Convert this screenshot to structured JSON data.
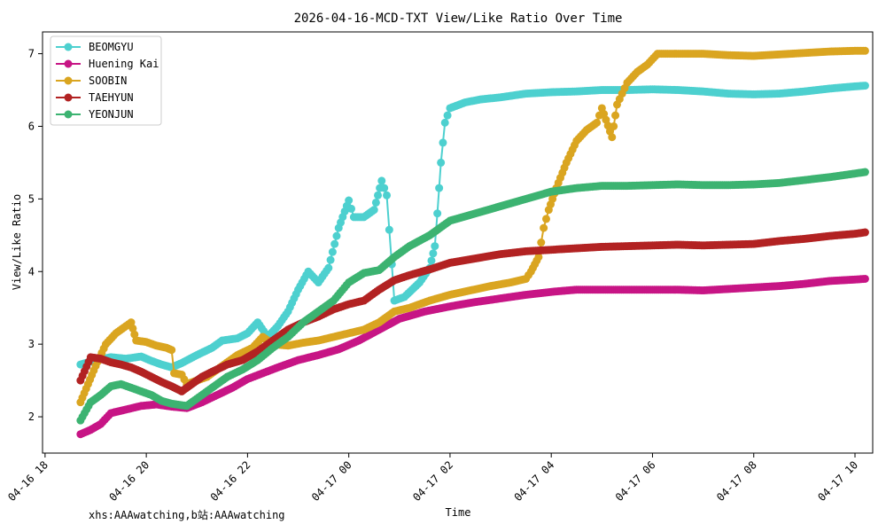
{
  "chart_data": {
    "type": "line",
    "title": "2026-04-16-MCD-TXT View/Like Ratio Over Time",
    "xlabel": "Time",
    "ylabel": "View/Like Ratio",
    "footer": "xhs:AAAwatching,b站:AAAwatching",
    "grid": false,
    "legend_position": "top-left",
    "x_unit": "hours since 2026-04-16 18:00",
    "xlim": [
      -0.05,
      16.35
    ],
    "ylim": [
      1.5,
      7.3
    ],
    "x_ticks": [
      {
        "value": 0,
        "label": "04-16 18"
      },
      {
        "value": 2,
        "label": "04-16 20"
      },
      {
        "value": 4,
        "label": "04-16 22"
      },
      {
        "value": 6,
        "label": "04-17 00"
      },
      {
        "value": 8,
        "label": "04-17 02"
      },
      {
        "value": 10,
        "label": "04-17 04"
      },
      {
        "value": 12,
        "label": "04-17 06"
      },
      {
        "value": 14,
        "label": "04-17 08"
      },
      {
        "value": 16,
        "label": "04-17 10"
      }
    ],
    "y_ticks": [
      {
        "value": 2,
        "label": "2"
      },
      {
        "value": 3,
        "label": "3"
      },
      {
        "value": 4,
        "label": "4"
      },
      {
        "value": 5,
        "label": "5"
      },
      {
        "value": 6,
        "label": "6"
      },
      {
        "value": 7,
        "label": "7"
      }
    ],
    "series": [
      {
        "name": "BEOMGYU",
        "color": "#4dd0cf",
        "points": [
          [
            0.7,
            2.72
          ],
          [
            1.0,
            2.78
          ],
          [
            1.3,
            2.82
          ],
          [
            1.6,
            2.8
          ],
          [
            1.9,
            2.83
          ],
          [
            2.1,
            2.77
          ],
          [
            2.3,
            2.72
          ],
          [
            2.5,
            2.68
          ],
          [
            2.7,
            2.74
          ],
          [
            3.0,
            2.85
          ],
          [
            3.3,
            2.95
          ],
          [
            3.5,
            3.05
          ],
          [
            3.8,
            3.08
          ],
          [
            4.0,
            3.15
          ],
          [
            4.2,
            3.3
          ],
          [
            4.4,
            3.1
          ],
          [
            4.6,
            3.25
          ],
          [
            4.8,
            3.45
          ],
          [
            5.0,
            3.75
          ],
          [
            5.2,
            4.0
          ],
          [
            5.4,
            3.85
          ],
          [
            5.6,
            4.05
          ],
          [
            5.8,
            4.6
          ],
          [
            6.0,
            4.98
          ],
          [
            6.1,
            4.75
          ],
          [
            6.3,
            4.75
          ],
          [
            6.5,
            4.85
          ],
          [
            6.65,
            5.25
          ],
          [
            6.75,
            5.05
          ],
          [
            6.85,
            4.1
          ],
          [
            6.9,
            3.6
          ],
          [
            7.1,
            3.65
          ],
          [
            7.4,
            3.85
          ],
          [
            7.6,
            4.05
          ],
          [
            7.7,
            4.35
          ],
          [
            7.75,
            4.8
          ],
          [
            7.82,
            5.5
          ],
          [
            7.9,
            6.05
          ],
          [
            8.0,
            6.25
          ],
          [
            8.3,
            6.33
          ],
          [
            8.6,
            6.37
          ],
          [
            9.0,
            6.4
          ],
          [
            9.5,
            6.45
          ],
          [
            10.0,
            6.47
          ],
          [
            10.5,
            6.48
          ],
          [
            11.0,
            6.5
          ],
          [
            11.5,
            6.5
          ],
          [
            12.0,
            6.51
          ],
          [
            12.5,
            6.5
          ],
          [
            13.0,
            6.48
          ],
          [
            13.5,
            6.45
          ],
          [
            14.0,
            6.44
          ],
          [
            14.5,
            6.45
          ],
          [
            15.0,
            6.48
          ],
          [
            15.5,
            6.52
          ],
          [
            16.0,
            6.55
          ],
          [
            16.2,
            6.56
          ]
        ]
      },
      {
        "name": "Huening Kai",
        "color": "#c71585",
        "points": [
          [
            0.7,
            1.76
          ],
          [
            0.9,
            1.82
          ],
          [
            1.1,
            1.9
          ],
          [
            1.3,
            2.05
          ],
          [
            1.6,
            2.1
          ],
          [
            1.9,
            2.15
          ],
          [
            2.2,
            2.17
          ],
          [
            2.5,
            2.14
          ],
          [
            2.8,
            2.12
          ],
          [
            3.1,
            2.2
          ],
          [
            3.4,
            2.3
          ],
          [
            3.7,
            2.4
          ],
          [
            4.0,
            2.52
          ],
          [
            4.3,
            2.6
          ],
          [
            4.6,
            2.68
          ],
          [
            5.0,
            2.78
          ],
          [
            5.4,
            2.85
          ],
          [
            5.8,
            2.93
          ],
          [
            6.2,
            3.05
          ],
          [
            6.6,
            3.2
          ],
          [
            7.0,
            3.35
          ],
          [
            7.5,
            3.45
          ],
          [
            8.0,
            3.52
          ],
          [
            8.5,
            3.58
          ],
          [
            9.0,
            3.63
          ],
          [
            9.5,
            3.68
          ],
          [
            10.0,
            3.72
          ],
          [
            10.5,
            3.75
          ],
          [
            11.0,
            3.75
          ],
          [
            11.5,
            3.75
          ],
          [
            12.0,
            3.75
          ],
          [
            12.5,
            3.75
          ],
          [
            13.0,
            3.74
          ],
          [
            13.5,
            3.76
          ],
          [
            14.0,
            3.78
          ],
          [
            14.5,
            3.8
          ],
          [
            15.0,
            3.83
          ],
          [
            15.5,
            3.87
          ],
          [
            16.0,
            3.89
          ],
          [
            16.2,
            3.9
          ]
        ]
      },
      {
        "name": "SOOBIN",
        "color": "#daa520",
        "points": [
          [
            0.7,
            2.2
          ],
          [
            0.85,
            2.45
          ],
          [
            1.0,
            2.7
          ],
          [
            1.2,
            3.0
          ],
          [
            1.4,
            3.15
          ],
          [
            1.6,
            3.25
          ],
          [
            1.7,
            3.3
          ],
          [
            1.8,
            3.05
          ],
          [
            2.0,
            3.03
          ],
          [
            2.2,
            2.98
          ],
          [
            2.4,
            2.95
          ],
          [
            2.5,
            2.92
          ],
          [
            2.55,
            2.6
          ],
          [
            2.7,
            2.58
          ],
          [
            2.8,
            2.45
          ],
          [
            3.0,
            2.5
          ],
          [
            3.2,
            2.55
          ],
          [
            3.5,
            2.7
          ],
          [
            3.8,
            2.85
          ],
          [
            4.1,
            2.95
          ],
          [
            4.3,
            3.1
          ],
          [
            4.5,
            3.0
          ],
          [
            4.8,
            2.98
          ],
          [
            5.1,
            3.02
          ],
          [
            5.4,
            3.05
          ],
          [
            5.7,
            3.1
          ],
          [
            6.0,
            3.15
          ],
          [
            6.3,
            3.2
          ],
          [
            6.6,
            3.3
          ],
          [
            6.9,
            3.45
          ],
          [
            7.2,
            3.5
          ],
          [
            7.6,
            3.6
          ],
          [
            8.0,
            3.68
          ],
          [
            8.4,
            3.74
          ],
          [
            8.8,
            3.8
          ],
          [
            9.2,
            3.85
          ],
          [
            9.5,
            3.9
          ],
          [
            9.6,
            4.0
          ],
          [
            9.75,
            4.2
          ],
          [
            9.85,
            4.6
          ],
          [
            9.95,
            4.85
          ],
          [
            10.1,
            5.15
          ],
          [
            10.3,
            5.5
          ],
          [
            10.5,
            5.8
          ],
          [
            10.7,
            5.95
          ],
          [
            10.9,
            6.05
          ],
          [
            11.0,
            6.25
          ],
          [
            11.2,
            5.85
          ],
          [
            11.3,
            6.3
          ],
          [
            11.4,
            6.45
          ],
          [
            11.5,
            6.6
          ],
          [
            11.7,
            6.75
          ],
          [
            11.9,
            6.85
          ],
          [
            12.1,
            7.0
          ],
          [
            12.3,
            7.0
          ],
          [
            12.6,
            7.0
          ],
          [
            13.0,
            7.0
          ],
          [
            13.5,
            6.98
          ],
          [
            14.0,
            6.97
          ],
          [
            14.5,
            6.99
          ],
          [
            15.0,
            7.01
          ],
          [
            15.5,
            7.03
          ],
          [
            16.0,
            7.04
          ],
          [
            16.2,
            7.04
          ]
        ]
      },
      {
        "name": "TAEHYUN",
        "color": "#b22222",
        "points": [
          [
            0.7,
            2.5
          ],
          [
            0.9,
            2.82
          ],
          [
            1.1,
            2.8
          ],
          [
            1.3,
            2.75
          ],
          [
            1.5,
            2.72
          ],
          [
            1.7,
            2.68
          ],
          [
            1.9,
            2.62
          ],
          [
            2.1,
            2.55
          ],
          [
            2.3,
            2.48
          ],
          [
            2.5,
            2.42
          ],
          [
            2.7,
            2.35
          ],
          [
            2.9,
            2.45
          ],
          [
            3.1,
            2.55
          ],
          [
            3.3,
            2.62
          ],
          [
            3.6,
            2.72
          ],
          [
            3.9,
            2.78
          ],
          [
            4.2,
            2.9
          ],
          [
            4.5,
            3.05
          ],
          [
            4.8,
            3.2
          ],
          [
            5.1,
            3.3
          ],
          [
            5.4,
            3.38
          ],
          [
            5.7,
            3.48
          ],
          [
            6.0,
            3.55
          ],
          [
            6.3,
            3.6
          ],
          [
            6.6,
            3.75
          ],
          [
            6.9,
            3.88
          ],
          [
            7.2,
            3.95
          ],
          [
            7.6,
            4.03
          ],
          [
            8.0,
            4.12
          ],
          [
            8.5,
            4.18
          ],
          [
            9.0,
            4.24
          ],
          [
            9.5,
            4.28
          ],
          [
            10.0,
            4.3
          ],
          [
            10.5,
            4.32
          ],
          [
            11.0,
            4.34
          ],
          [
            11.5,
            4.35
          ],
          [
            12.0,
            4.36
          ],
          [
            12.5,
            4.37
          ],
          [
            13.0,
            4.36
          ],
          [
            13.5,
            4.37
          ],
          [
            14.0,
            4.38
          ],
          [
            14.5,
            4.42
          ],
          [
            15.0,
            4.45
          ],
          [
            15.5,
            4.49
          ],
          [
            16.0,
            4.52
          ],
          [
            16.2,
            4.54
          ]
        ]
      },
      {
        "name": "YEONJUN",
        "color": "#3cb371",
        "points": [
          [
            0.7,
            1.95
          ],
          [
            0.9,
            2.2
          ],
          [
            1.1,
            2.3
          ],
          [
            1.3,
            2.42
          ],
          [
            1.5,
            2.45
          ],
          [
            1.7,
            2.4
          ],
          [
            1.9,
            2.35
          ],
          [
            2.1,
            2.3
          ],
          [
            2.3,
            2.22
          ],
          [
            2.5,
            2.18
          ],
          [
            2.8,
            2.15
          ],
          [
            3.0,
            2.25
          ],
          [
            3.3,
            2.4
          ],
          [
            3.6,
            2.55
          ],
          [
            3.9,
            2.65
          ],
          [
            4.2,
            2.78
          ],
          [
            4.5,
            2.95
          ],
          [
            4.8,
            3.1
          ],
          [
            5.1,
            3.3
          ],
          [
            5.4,
            3.45
          ],
          [
            5.7,
            3.6
          ],
          [
            6.0,
            3.85
          ],
          [
            6.3,
            3.98
          ],
          [
            6.6,
            4.02
          ],
          [
            6.9,
            4.2
          ],
          [
            7.2,
            4.35
          ],
          [
            7.6,
            4.5
          ],
          [
            8.0,
            4.7
          ],
          [
            8.5,
            4.8
          ],
          [
            9.0,
            4.9
          ],
          [
            9.5,
            5.0
          ],
          [
            10.0,
            5.1
          ],
          [
            10.5,
            5.15
          ],
          [
            11.0,
            5.18
          ],
          [
            11.5,
            5.18
          ],
          [
            12.0,
            5.19
          ],
          [
            12.5,
            5.2
          ],
          [
            13.0,
            5.19
          ],
          [
            13.5,
            5.19
          ],
          [
            14.0,
            5.2
          ],
          [
            14.5,
            5.22
          ],
          [
            15.0,
            5.26
          ],
          [
            15.5,
            5.3
          ],
          [
            16.0,
            5.35
          ],
          [
            16.2,
            5.37
          ]
        ]
      }
    ]
  }
}
